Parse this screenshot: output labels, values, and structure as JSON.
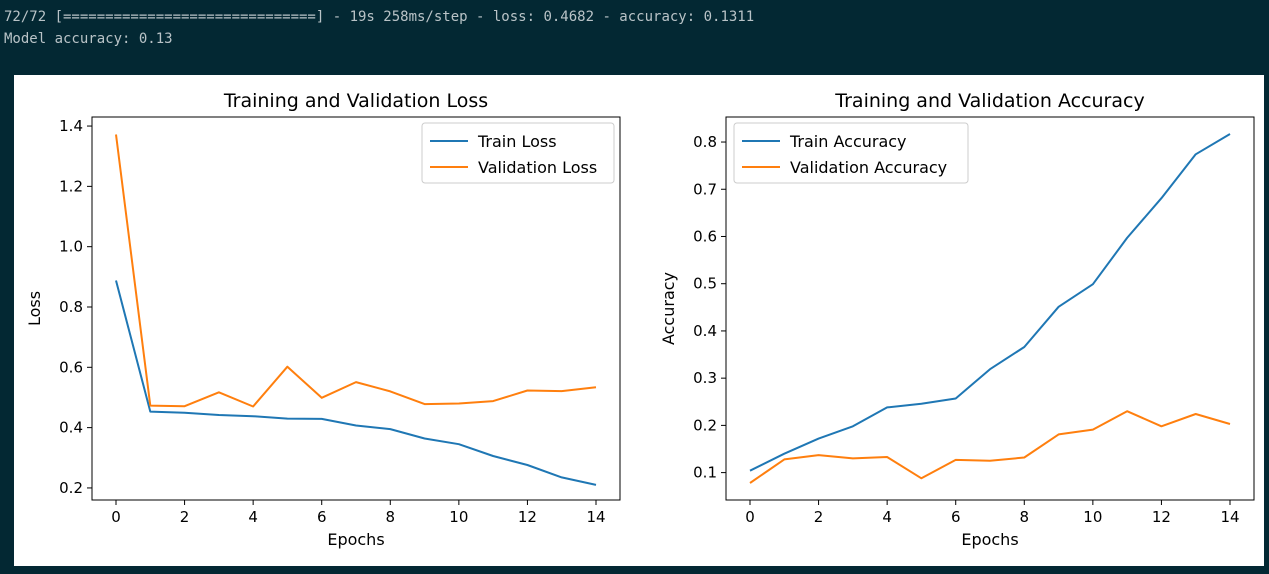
{
  "console": {
    "progress_line": "72/72 [==============================] - 19s 258ms/step - loss: 0.4682 - accuracy: 0.1311",
    "result_line": "Model accuracy: 0.13"
  },
  "colors": {
    "train": "#1f77b4",
    "validation": "#ff7f0e",
    "background": "#032833"
  },
  "chart_data": [
    {
      "type": "line",
      "title": "Training and Validation Loss",
      "xlabel": "Epochs",
      "ylabel": "Loss",
      "x": [
        0,
        1,
        2,
        3,
        4,
        5,
        6,
        7,
        8,
        9,
        10,
        11,
        12,
        13,
        14
      ],
      "xticks": [
        0,
        2,
        4,
        6,
        8,
        10,
        12,
        14
      ],
      "yticks": [
        0.2,
        0.4,
        0.6,
        0.8,
        1.0,
        1.2,
        1.4
      ],
      "ytick_labels": [
        "0.2",
        "0.4",
        "0.6",
        "0.8",
        "1.0",
        "1.2",
        "1.4"
      ],
      "xlim": [
        -0.7,
        14.7
      ],
      "ylim": [
        0.16,
        1.43
      ],
      "grid": false,
      "legend_position": "upper right",
      "series": [
        {
          "name": "Train Loss",
          "color": "#1f77b4",
          "values": [
            0.888,
            0.453,
            0.449,
            0.442,
            0.438,
            0.43,
            0.429,
            0.407,
            0.395,
            0.364,
            0.345,
            0.306,
            0.276,
            0.235,
            0.21
          ]
        },
        {
          "name": "Validation Loss",
          "color": "#ff7f0e",
          "values": [
            1.372,
            0.473,
            0.471,
            0.517,
            0.47,
            0.602,
            0.499,
            0.551,
            0.52,
            0.478,
            0.48,
            0.488,
            0.523,
            0.521,
            0.534
          ]
        }
      ]
    },
    {
      "type": "line",
      "title": "Training and Validation Accuracy",
      "xlabel": "Epochs",
      "ylabel": "Accuracy",
      "x": [
        0,
        1,
        2,
        3,
        4,
        5,
        6,
        7,
        8,
        9,
        10,
        11,
        12,
        13,
        14
      ],
      "xticks": [
        0,
        2,
        4,
        6,
        8,
        10,
        12,
        14
      ],
      "yticks": [
        0.1,
        0.2,
        0.3,
        0.4,
        0.5,
        0.6,
        0.7,
        0.8
      ],
      "ytick_labels": [
        "0.1",
        "0.2",
        "0.3",
        "0.4",
        "0.5",
        "0.6",
        "0.7",
        "0.8"
      ],
      "xlim": [
        -0.7,
        14.7
      ],
      "ylim": [
        0.042,
        0.853
      ],
      "grid": false,
      "legend_position": "upper left",
      "series": [
        {
          "name": "Train Accuracy",
          "color": "#1f77b4",
          "values": [
            0.104,
            0.14,
            0.172,
            0.198,
            0.238,
            0.246,
            0.257,
            0.319,
            0.366,
            0.451,
            0.499,
            0.597,
            0.681,
            0.774,
            0.817
          ]
        },
        {
          "name": "Validation Accuracy",
          "color": "#ff7f0e",
          "values": [
            0.078,
            0.128,
            0.137,
            0.13,
            0.133,
            0.088,
            0.127,
            0.125,
            0.132,
            0.181,
            0.191,
            0.23,
            0.198,
            0.224,
            0.203
          ]
        }
      ]
    }
  ]
}
